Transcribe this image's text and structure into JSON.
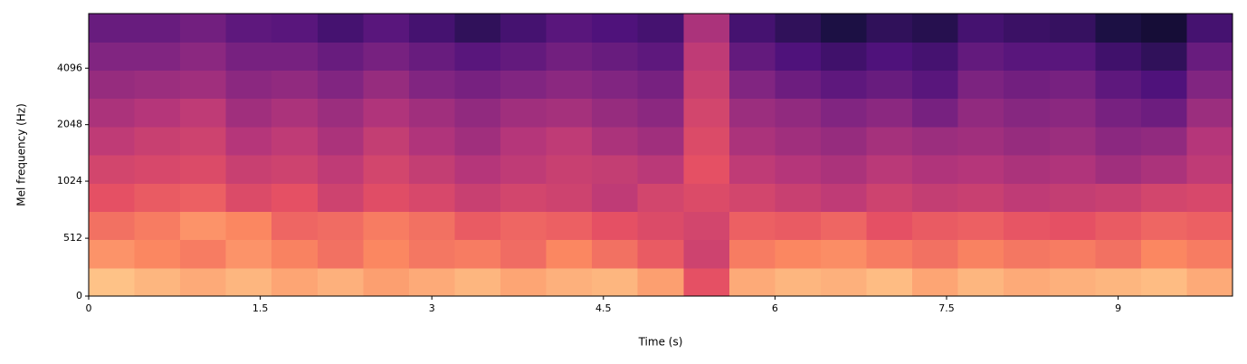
{
  "chart_data": {
    "type": "heatmap",
    "xlabel": "Time (s)",
    "ylabel": "Mel frequency (Hz)",
    "xlim": [
      0,
      10
    ],
    "xticks": [
      0,
      1.5,
      3,
      4.5,
      6,
      7.5,
      9
    ],
    "ylim": [
      0,
      8000
    ],
    "yticks": [
      0,
      512,
      1024,
      2048,
      4096
    ],
    "yscale": "symlog",
    "linthresh": 1000,
    "logbase": 2,
    "colormap": "magma",
    "zlim": [
      -80,
      0
    ],
    "z": [
      [
        -10,
        -12,
        -14,
        -12,
        -15,
        -13,
        -16,
        -14,
        -12,
        -15,
        -13,
        -12,
        -16,
        -30,
        -14,
        -12,
        -13,
        -11,
        -15,
        -12,
        -14,
        -13,
        -12,
        -11,
        -14
      ],
      [
        -18,
        -20,
        -22,
        -18,
        -21,
        -24,
        -20,
        -23,
        -22,
        -25,
        -20,
        -24,
        -28,
        -35,
        -22,
        -20,
        -19,
        -22,
        -24,
        -21,
        -23,
        -22,
        -24,
        -20,
        -22
      ],
      [
        -24,
        -22,
        -18,
        -20,
        -26,
        -25,
        -22,
        -24,
        -28,
        -26,
        -27,
        -30,
        -32,
        -34,
        -27,
        -28,
        -26,
        -30,
        -28,
        -27,
        -29,
        -30,
        -28,
        -26,
        -27
      ],
      [
        -30,
        -28,
        -27,
        -32,
        -30,
        -35,
        -31,
        -33,
        -36,
        -34,
        -35,
        -38,
        -34,
        -32,
        -34,
        -36,
        -38,
        -35,
        -37,
        -36,
        -38,
        -37,
        -36,
        -34,
        -33
      ],
      [
        -34,
        -33,
        -32,
        -36,
        -35,
        -38,
        -34,
        -37,
        -40,
        -38,
        -36,
        -37,
        -39,
        -30,
        -38,
        -40,
        -42,
        -39,
        -41,
        -40,
        -42,
        -41,
        -44,
        -42,
        -38
      ],
      [
        -38,
        -36,
        -35,
        -40,
        -38,
        -42,
        -37,
        -41,
        -44,
        -40,
        -38,
        -42,
        -44,
        -32,
        -42,
        -44,
        -46,
        -43,
        -45,
        -44,
        -46,
        -45,
        -48,
        -47,
        -40
      ],
      [
        -42,
        -40,
        -38,
        -44,
        -42,
        -45,
        -41,
        -44,
        -47,
        -44,
        -43,
        -46,
        -48,
        -34,
        -45,
        -47,
        -50,
        -48,
        -52,
        -47,
        -49,
        -48,
        -52,
        -54,
        -45
      ],
      [
        -46,
        -45,
        -44,
        -48,
        -47,
        -50,
        -46,
        -50,
        -52,
        -50,
        -48,
        -50,
        -52,
        -36,
        -50,
        -54,
        -57,
        -55,
        -58,
        -51,
        -53,
        -52,
        -57,
        -60,
        -50
      ],
      [
        -50,
        -50,
        -48,
        -52,
        -52,
        -55,
        -52,
        -55,
        -58,
        -56,
        -53,
        -55,
        -57,
        -38,
        -56,
        -60,
        -63,
        -60,
        -62,
        -56,
        -58,
        -58,
        -63,
        -66,
        -55
      ],
      [
        -55,
        -55,
        -53,
        -57,
        -58,
        -62,
        -58,
        -62,
        -66,
        -62,
        -58,
        -60,
        -62,
        -42,
        -62,
        -66,
        -70,
        -66,
        -68,
        -62,
        -64,
        -65,
        -70,
        -72,
        -62
      ]
    ]
  }
}
